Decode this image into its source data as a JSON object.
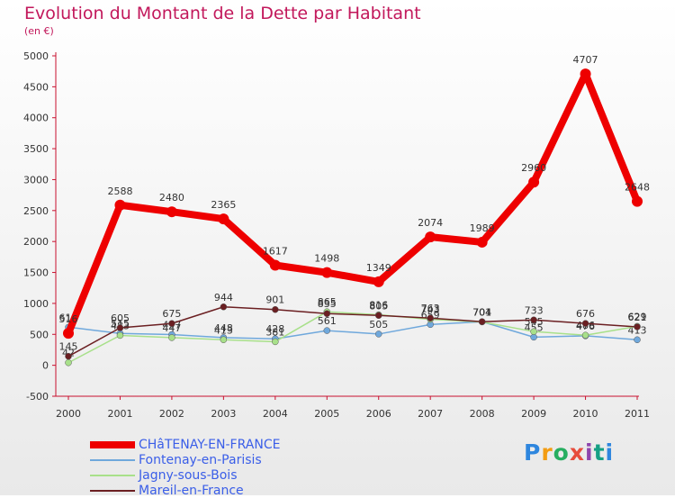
{
  "header": {
    "title": "Evolution du Montant de la Dette par Habitant",
    "subtitle": "(en €)"
  },
  "chart_data": {
    "type": "line",
    "title": "Evolution du Montant de la Dette par Habitant",
    "subtitle": "(en €)",
    "xlabel": "",
    "ylabel": "(en €)",
    "categories": [
      "2000",
      "2001",
      "2002",
      "2003",
      "2004",
      "2005",
      "2006",
      "2007",
      "2008",
      "2009",
      "2010",
      "2011"
    ],
    "ylim": [
      -500,
      5000
    ],
    "yticks": [
      -500,
      0,
      500,
      1000,
      1500,
      2000,
      2500,
      3000,
      3500,
      4000,
      4500,
      5000
    ],
    "grid": false,
    "legend": "bottom-left",
    "series": [
      {
        "name": "CHâTENAY-EN-FRANCE",
        "color": "#ee0000",
        "width": 8,
        "values": [
          516,
          2588,
          2480,
          2365,
          1617,
          1498,
          1349,
          2074,
          1989,
          2960,
          4707,
          2648
        ]
      },
      {
        "name": "Fontenay-en-Parisis",
        "color": "#6fa8dc",
        "width": 1.5,
        "values": [
          616,
          515,
          497,
          448,
          428,
          561,
          505,
          659,
          704,
          455,
          476,
          413
        ]
      },
      {
        "name": "Jagny-sous-Bois",
        "color": "#a8e08a",
        "width": 1.5,
        "values": [
          42,
          483,
          447,
          413,
          381,
          865,
          816,
          743,
          701,
          545,
          486,
          629
        ]
      },
      {
        "name": "Mareil-en-France",
        "color": "#6b1f22",
        "width": 1.5,
        "values": [
          145,
          605,
          675,
          944,
          901,
          835,
          805,
          763,
          704,
          733,
          676,
          621
        ]
      }
    ]
  },
  "legend": {
    "items": [
      {
        "label": "CHâTENAY-EN-FRANCE",
        "color": "#ee0000"
      },
      {
        "label": "Fontenay-en-Parisis",
        "color": "#6fa8dc"
      },
      {
        "label": "Jagny-sous-Bois",
        "color": "#a8e08a"
      },
      {
        "label": "Mareil-en-France",
        "color": "#6b1f22"
      }
    ]
  },
  "logo": {
    "letters": [
      "P",
      "r",
      "o",
      "x",
      "i",
      "t",
      "i"
    ],
    "text": "Proxiti"
  }
}
